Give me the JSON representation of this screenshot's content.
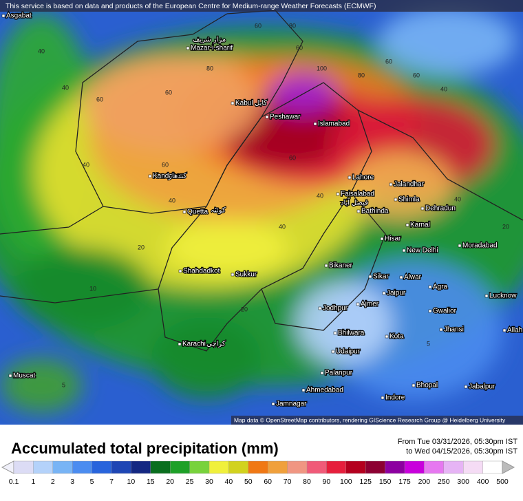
{
  "header": {
    "notice": "This service is based on data and products of the European Centre for Medium-range Weather Forecasts (ECMWF)",
    "attribution": "Map data © OpenStreetMap contributors, rendering GIScience Research Group @ Heidelberg University"
  },
  "map": {
    "cities": [
      "Asgabat",
      "Mazar-i-sharif",
      "Kabul",
      "Peshawar",
      "Islamabad",
      "Kandahar",
      "Lahore",
      "Faisalabad",
      "Jalandhar",
      "Shimla",
      "Bathinda",
      "Dehradun",
      "Quetta",
      "Karnal",
      "Hisar",
      "New Delhi",
      "Moradabad",
      "Bikaner",
      "Shahdadkot",
      "Sukkur",
      "Sikar",
      "Alwar",
      "Agra",
      "Lucknow",
      "Jaipur",
      "Jodhpur",
      "Ajmer",
      "Gwalior",
      "Jhansi",
      "Bhilwara",
      "Kota",
      "Allah",
      "Karachi",
      "Udaipur",
      "Muscat",
      "Palanpur",
      "Bhopal",
      "Jabalpur",
      "Ahmedabad",
      "Indore",
      "Jamnagar"
    ],
    "local_names": [
      "مزار شریف",
      "کابل",
      "کندهار",
      "کوئٹہ",
      "فیصل آباد",
      "کراچی"
    ],
    "contour_labels": [
      40,
      40,
      60,
      60,
      80,
      60,
      80,
      60,
      100,
      80,
      60,
      40,
      40,
      60,
      40,
      40,
      40,
      60,
      40,
      20,
      20,
      10,
      20,
      5,
      5,
      60
    ]
  },
  "legend": {
    "title": "Accumulated total precipitation (mm)",
    "from": "From Tue 03/31/2026, 05:30pm IST",
    "to": "to Wed 04/15/2026, 05:30pm IST",
    "ticks": [
      0.1,
      1,
      2,
      3,
      5,
      7,
      10,
      15,
      20,
      25,
      30,
      40,
      50,
      60,
      70,
      80,
      90,
      100,
      125,
      150,
      175,
      200,
      250,
      300,
      400,
      500
    ],
    "colors": [
      "#dcdcf5",
      "#b4d2fa",
      "#78b4f5",
      "#4b8cf0",
      "#2864dc",
      "#1e46b4",
      "#142882",
      "#0a6e1e",
      "#1ea028",
      "#78d23c",
      "#f0f03c",
      "#d2d21e",
      "#f07814",
      "#f0a03c",
      "#f09682",
      "#f05a78",
      "#e61e3c",
      "#b4001e",
      "#8c0032",
      "#8c00a0",
      "#c800dc",
      "#e678f0",
      "#e6b4f5",
      "#f5dcf5",
      "#ffffff"
    ]
  }
}
